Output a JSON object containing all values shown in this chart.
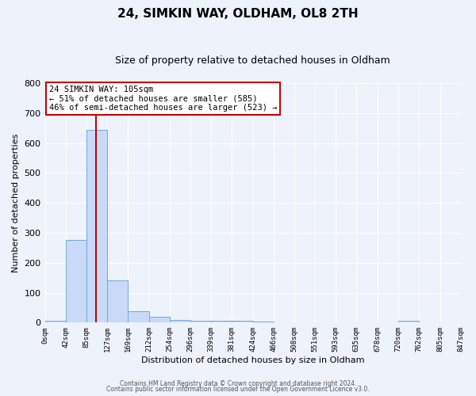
{
  "title": "24, SIMKIN WAY, OLDHAM, OL8 2TH",
  "subtitle": "Size of property relative to detached houses in Oldham",
  "xlabel": "Distribution of detached houses by size in Oldham",
  "ylabel": "Number of detached properties",
  "bin_edges": [
    0,
    42,
    85,
    127,
    169,
    212,
    254,
    296,
    339,
    381,
    424,
    466,
    508,
    551,
    593,
    635,
    678,
    720,
    762,
    805,
    847
  ],
  "bar_values": [
    7,
    275,
    645,
    140,
    38,
    20,
    10,
    7,
    5,
    5,
    3,
    0,
    0,
    0,
    0,
    0,
    0,
    5,
    0,
    0
  ],
  "bar_color": "#c9daf8",
  "bar_edge_color": "#6fa8dc",
  "ylim": [
    0,
    800
  ],
  "yticks": [
    0,
    100,
    200,
    300,
    400,
    500,
    600,
    700,
    800
  ],
  "red_line_x": 105,
  "annotation_title": "24 SIMKIN WAY: 105sqm",
  "annotation_line1": "← 51% of detached houses are smaller (585)",
  "annotation_line2": "46% of semi-detached houses are larger (523) →",
  "annotation_box_color": "#ffffff",
  "annotation_box_edge": "#cc0000",
  "red_line_color": "#cc0000",
  "footer1": "Contains HM Land Registry data © Crown copyright and database right 2024.",
  "footer2": "Contains public sector information licensed under the Open Government Licence v3.0.",
  "background_color": "#eef2fb",
  "grid_color": "#ffffff",
  "xtick_labels": [
    "0sqm",
    "42sqm",
    "85sqm",
    "127sqm",
    "169sqm",
    "212sqm",
    "254sqm",
    "296sqm",
    "339sqm",
    "381sqm",
    "424sqm",
    "466sqm",
    "508sqm",
    "551sqm",
    "593sqm",
    "635sqm",
    "678sqm",
    "720sqm",
    "762sqm",
    "805sqm",
    "847sqm"
  ],
  "title_fontsize": 11,
  "subtitle_fontsize": 9,
  "xlabel_fontsize": 8,
  "ylabel_fontsize": 8,
  "xtick_fontsize": 6.5,
  "ytick_fontsize": 8,
  "annotation_fontsize": 7.5,
  "footer_fontsize": 5.5
}
